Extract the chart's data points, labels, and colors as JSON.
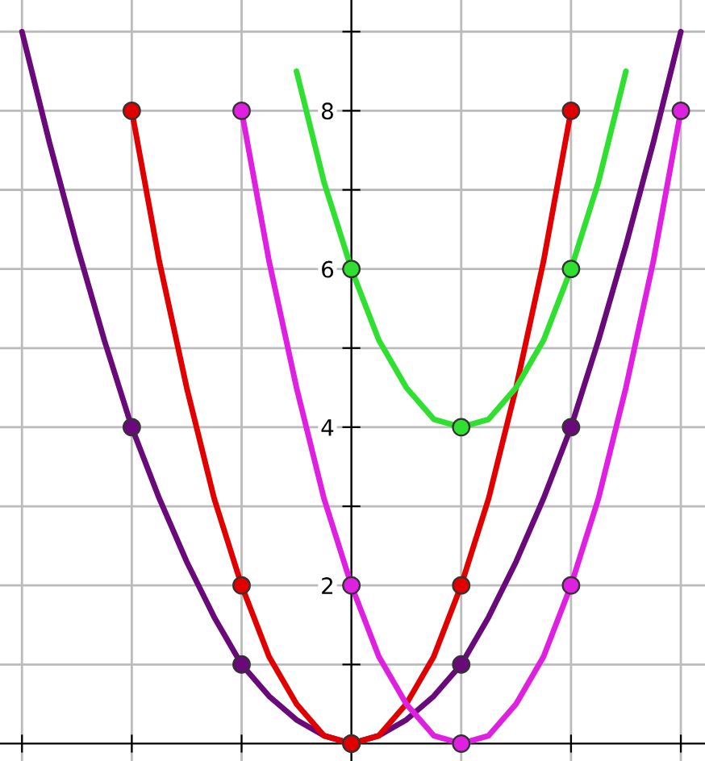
{
  "chart_data": {
    "type": "line",
    "categories": [
      null,
      null,
      null,
      null,
      null,
      null,
      null,
      null,
      null,
      null,
      null,
      null,
      null,
      null,
      null,
      null,
      null,
      null,
      null,
      null,
      null,
      null,
      null,
      null,
      null
    ],
    "series": [
      {
        "color": "#6a0a7a",
        "marker": "none",
        "values": [
          9,
          7.6,
          6.3,
          5.1,
          4,
          3.1,
          2.3,
          1.6,
          1,
          0.6,
          0.3,
          0.1,
          0,
          0.1,
          0.3,
          0.6,
          1,
          1.6,
          2.3,
          3.1,
          4,
          5.1,
          6.3,
          7.6,
          9
        ]
      },
      {
        "color": "#e00000",
        "marker": "none",
        "values": [
          null,
          null,
          null,
          null,
          8,
          6.1,
          4.5,
          3.1,
          2,
          1.1,
          0.5,
          0.1,
          0,
          0.1,
          0.5,
          1.1,
          2,
          3.1,
          4.5,
          6.1,
          8,
          null,
          null,
          null,
          null
        ]
      },
      {
        "color": "#e020e0",
        "marker": "none",
        "values": [
          null,
          null,
          null,
          null,
          null,
          null,
          null,
          null,
          8,
          6.1,
          4.5,
          3.1,
          2,
          1.1,
          0.5,
          0.1,
          0,
          0.1,
          0.5,
          1.1,
          2,
          3.1,
          4.5,
          6.1,
          8
        ]
      },
      {
        "color": "#30e030",
        "marker": "none",
        "values": [
          null,
          null,
          null,
          null,
          null,
          null,
          null,
          null,
          null,
          null,
          8.5,
          7.1,
          6,
          5.1,
          4.5,
          4.1,
          4,
          4.1,
          4.5,
          5.1,
          6,
          7.1,
          8.5,
          null,
          null
        ]
      },
      {
        "type": "scatter",
        "marker": "circle",
        "color": "#6a0a7a",
        "values": [
          null,
          null,
          null,
          null,
          4,
          null,
          null,
          null,
          1,
          null,
          null,
          null,
          0,
          null,
          null,
          null,
          1,
          null,
          null,
          null,
          4,
          null,
          null,
          null,
          null
        ]
      },
      {
        "type": "scatter",
        "marker": "circle",
        "color": "#e00000",
        "values": [
          null,
          null,
          null,
          null,
          8,
          null,
          null,
          null,
          2,
          null,
          null,
          null,
          0,
          null,
          null,
          null,
          2,
          null,
          null,
          null,
          8,
          null,
          null,
          null,
          null
        ]
      },
      {
        "type": "scatter",
        "marker": "circle",
        "color": "#e020e0",
        "values": [
          null,
          null,
          null,
          null,
          null,
          null,
          null,
          null,
          8,
          null,
          null,
          null,
          2,
          null,
          null,
          null,
          0,
          null,
          null,
          null,
          2,
          null,
          null,
          null,
          8
        ]
      },
      {
        "type": "scatter",
        "marker": "circle",
        "color": "#30e030",
        "values": [
          null,
          null,
          null,
          null,
          null,
          null,
          null,
          null,
          null,
          null,
          null,
          null,
          6,
          null,
          null,
          null,
          4,
          null,
          null,
          null,
          6,
          null,
          null,
          null,
          null
        ]
      }
    ],
    "ylim": [
      -0.22,
      9.4
    ],
    "yticks": [
      {
        "value": 1,
        "label": null
      },
      2,
      {
        "value": 3,
        "label": null
      },
      4,
      {
        "value": 5,
        "label": null
      },
      6,
      {
        "value": 7,
        "label": null
      },
      8,
      {
        "value": 9,
        "label": null
      }
    ],
    "tick_labels": "y",
    "grid": true,
    "line_style": "solid"
  }
}
